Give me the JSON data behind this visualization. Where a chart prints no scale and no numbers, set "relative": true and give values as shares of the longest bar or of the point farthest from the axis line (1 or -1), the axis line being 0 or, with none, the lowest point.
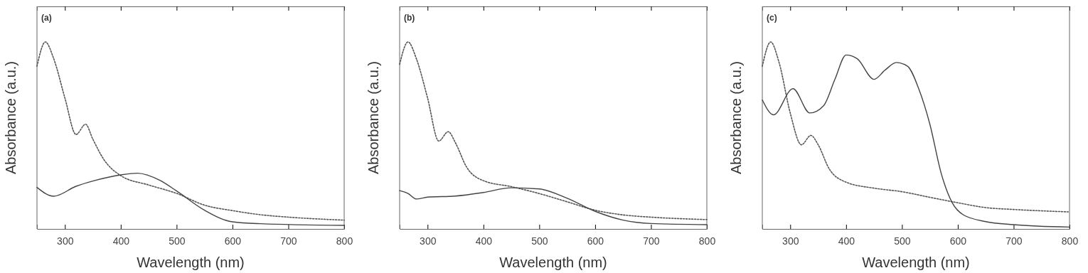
{
  "chart_data": [
    {
      "type": "line",
      "relative": true,
      "xlabel": "Wavelength (nm)",
      "ylabel": "Absorbance (a.u.)",
      "annotations": [
        "(a)"
      ],
      "xlim": [
        250,
        800
      ],
      "xticks": [
        300,
        400,
        500,
        600,
        700,
        800
      ],
      "series": [
        {
          "color": "#555555",
          "line_style": "dotted",
          "x": [
            250,
            265,
            280,
            300,
            320,
            337,
            350,
            370,
            400,
            450,
            500,
            550,
            600,
            650,
            700,
            800
          ],
          "values": [
            0.87,
            1.0,
            0.91,
            0.7,
            0.505,
            0.56,
            0.48,
            0.37,
            0.285,
            0.235,
            0.19,
            0.127,
            0.098,
            0.076,
            0.063,
            0.047
          ]
        },
        {
          "color": "#444444",
          "line_style": "solid",
          "x": [
            250,
            280,
            320,
            350,
            400,
            430,
            470,
            500,
            550,
            600,
            650,
            800
          ],
          "values": [
            0.222,
            0.175,
            0.228,
            0.256,
            0.289,
            0.298,
            0.26,
            0.203,
            0.1,
            0.038,
            0.028,
            0.019
          ]
        }
      ]
    },
    {
      "type": "line",
      "relative": true,
      "xlabel": "Wavelength (nm)",
      "ylabel": "Absorbance (a.u.)",
      "annotations": [
        "(b)"
      ],
      "xlim": [
        250,
        800
      ],
      "xticks": [
        300,
        400,
        500,
        600,
        700,
        800
      ],
      "series": [
        {
          "color": "#555555",
          "line_style": "dotted",
          "x": [
            250,
            265,
            280,
            300,
            320,
            337,
            350,
            370,
            400,
            450,
            500,
            550,
            600,
            650,
            700,
            800
          ],
          "values": [
            0.88,
            1.0,
            0.91,
            0.7,
            0.47,
            0.52,
            0.46,
            0.33,
            0.258,
            0.226,
            0.189,
            0.145,
            0.1,
            0.075,
            0.063,
            0.05
          ]
        },
        {
          "color": "#444444",
          "line_style": "solid",
          "x": [
            250,
            265,
            280,
            300,
            350,
            400,
            450,
            500,
            550,
            600,
            650,
            700,
            800
          ],
          "values": [
            0.205,
            0.19,
            0.16,
            0.17,
            0.176,
            0.195,
            0.22,
            0.214,
            0.164,
            0.094,
            0.047,
            0.029,
            0.023
          ]
        }
      ]
    },
    {
      "type": "line",
      "relative": true,
      "xlabel": "Wavelength (nm)",
      "ylabel": "Absorbance (a.u.)",
      "annotations": [
        "(c)"
      ],
      "xlim": [
        250,
        800
      ],
      "xticks": [
        300,
        400,
        500,
        600,
        700,
        800
      ],
      "series": [
        {
          "color": "#555555",
          "line_style": "dotted",
          "x": [
            250,
            265,
            280,
            300,
            320,
            337,
            350,
            370,
            400,
            450,
            500,
            550,
            600,
            650,
            700,
            800
          ],
          "values": [
            0.87,
            1.0,
            0.89,
            0.62,
            0.45,
            0.5,
            0.45,
            0.32,
            0.25,
            0.218,
            0.199,
            0.169,
            0.14,
            0.114,
            0.104,
            0.091
          ]
        },
        {
          "color": "#444444",
          "line_style": "solid",
          "x": [
            250,
            270,
            305,
            335,
            360,
            380,
            400,
            420,
            450,
            470,
            490,
            510,
            530,
            550,
            570,
            590,
            610,
            650,
            700,
            800
          ],
          "values": [
            0.69,
            0.61,
            0.75,
            0.62,
            0.66,
            0.8,
            0.93,
            0.91,
            0.8,
            0.85,
            0.89,
            0.87,
            0.75,
            0.56,
            0.3,
            0.14,
            0.075,
            0.039,
            0.023,
            0.01
          ]
        }
      ]
    }
  ]
}
